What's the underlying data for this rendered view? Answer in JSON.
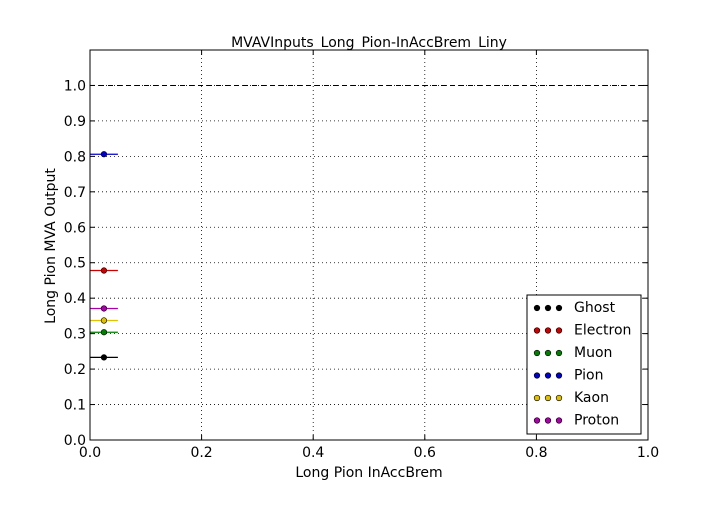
{
  "chart_data": {
    "type": "scatter",
    "title": "MVAVInputs_Long_Pion-InAccBrem_Liny",
    "xlabel": "Long Pion InAccBrem",
    "ylabel": "Long Pion MVA Output",
    "xlim": [
      0.0,
      1.0
    ],
    "ylim": [
      0.0,
      1.1
    ],
    "x_ticks": [
      "0.0",
      "0.2",
      "0.4",
      "0.6",
      "0.8",
      "1.0"
    ],
    "y_ticks": [
      "0.0",
      "0.1",
      "0.2",
      "0.3",
      "0.4",
      "0.5",
      "0.6",
      "0.7",
      "0.8",
      "0.9",
      "1.0"
    ],
    "grid": true,
    "reference_line_y": 1.0,
    "legend_position": "lower-right",
    "series": [
      {
        "name": "Ghost",
        "color": "#000000",
        "x": [
          0.025
        ],
        "xerr": [
          0.025
        ],
        "y": [
          0.233
        ]
      },
      {
        "name": "Electron",
        "color": "#cc0000",
        "x": [
          0.025
        ],
        "xerr": [
          0.025
        ],
        "y": [
          0.478
        ]
      },
      {
        "name": "Muon",
        "color": "#008000",
        "x": [
          0.025
        ],
        "xerr": [
          0.025
        ],
        "y": [
          0.304
        ]
      },
      {
        "name": "Pion",
        "color": "#0000cc",
        "x": [
          0.025
        ],
        "xerr": [
          0.025
        ],
        "y": [
          0.806
        ]
      },
      {
        "name": "Kaon",
        "color": "#e0c000",
        "x": [
          0.025
        ],
        "xerr": [
          0.025
        ],
        "y": [
          0.337
        ]
      },
      {
        "name": "Proton",
        "color": "#aa00aa",
        "x": [
          0.025
        ],
        "xerr": [
          0.025
        ],
        "y": [
          0.371
        ]
      }
    ]
  }
}
